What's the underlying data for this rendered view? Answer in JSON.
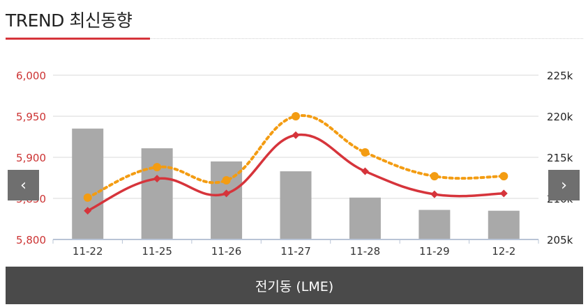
{
  "header": {
    "title": "TREND 최신동향"
  },
  "nav": {
    "prev_icon": "chevron-left-icon",
    "next_icon": "chevron-right-icon",
    "prev_glyph": "‹",
    "next_glyph": "›"
  },
  "footer": {
    "label": "전기동 (LME)"
  },
  "colors": {
    "accent": "#d6343b",
    "bar": "#a9a9a9",
    "dotted_line": "#f39c12",
    "left_axis_text": "#cc3333",
    "right_axis_text": "#222222",
    "button_bg": "#6f6f6f",
    "footer_bg": "#4a4a4a"
  },
  "chart_data": {
    "type": "bar",
    "categories": [
      "11-22",
      "11-25",
      "11-26",
      "11-27",
      "11-28",
      "11-29",
      "12-2"
    ],
    "left_axis": {
      "ylim": [
        5800,
        6000
      ],
      "ticks": [
        "5,800",
        "5,850",
        "5,900",
        "5,950",
        "6,000"
      ],
      "tick_values": [
        5800,
        5850,
        5900,
        5950,
        6000
      ]
    },
    "right_axis": {
      "ylim": [
        205000,
        225000
      ],
      "ticks": [
        "205k",
        "210k",
        "215k",
        "220k",
        "225k"
      ],
      "tick_values": [
        205000,
        210000,
        215000,
        220000,
        225000
      ]
    },
    "series": [
      {
        "kind": "bar",
        "axis": "right",
        "values": [
          218500,
          216100,
          214500,
          213300,
          210100,
          208600,
          208500
        ]
      },
      {
        "kind": "line",
        "axis": "left",
        "values": [
          5835,
          5874,
          5856,
          5927,
          5883,
          5855,
          5856
        ]
      },
      {
        "kind": "line-dotted",
        "axis": "left",
        "values": [
          5851,
          5888,
          5872,
          5950,
          5906,
          5877,
          5877
        ]
      }
    ],
    "grid": true
  }
}
